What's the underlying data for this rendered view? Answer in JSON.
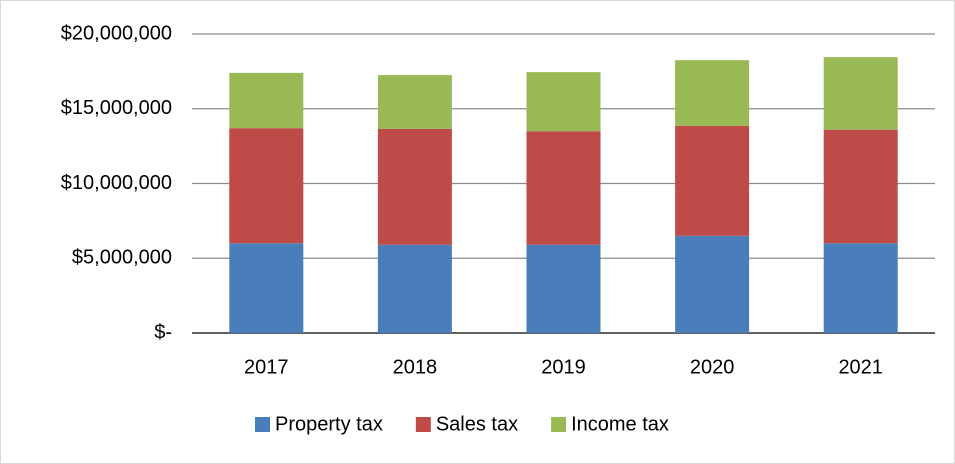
{
  "chart_data": {
    "type": "stacked_bar",
    "categories": [
      "2017",
      "2018",
      "2019",
      "2020",
      "2021"
    ],
    "series": [
      {
        "name": "Property tax",
        "color": "#4a7ebb",
        "values": [
          6000000,
          5900000,
          5900000,
          6500000,
          6000000
        ]
      },
      {
        "name": "Sales tax",
        "color": "#be4b48",
        "values": [
          7700000,
          7750000,
          7600000,
          7350000,
          7600000
        ]
      },
      {
        "name": "Income tax",
        "color": "#98b954",
        "values": [
          3700000,
          3600000,
          3950000,
          4400000,
          4850000
        ]
      }
    ],
    "ylim": [
      0,
      20000000
    ],
    "yticks": [
      {
        "value": 0,
        "label": "$-"
      },
      {
        "value": 5000000,
        "label": "$5,000,000"
      },
      {
        "value": 10000000,
        "label": "$10,000,000"
      },
      {
        "value": 15000000,
        "label": "$15,000,000"
      },
      {
        "value": 20000000,
        "label": "$20,000,000"
      }
    ],
    "grid": true,
    "legend": "bottom"
  }
}
